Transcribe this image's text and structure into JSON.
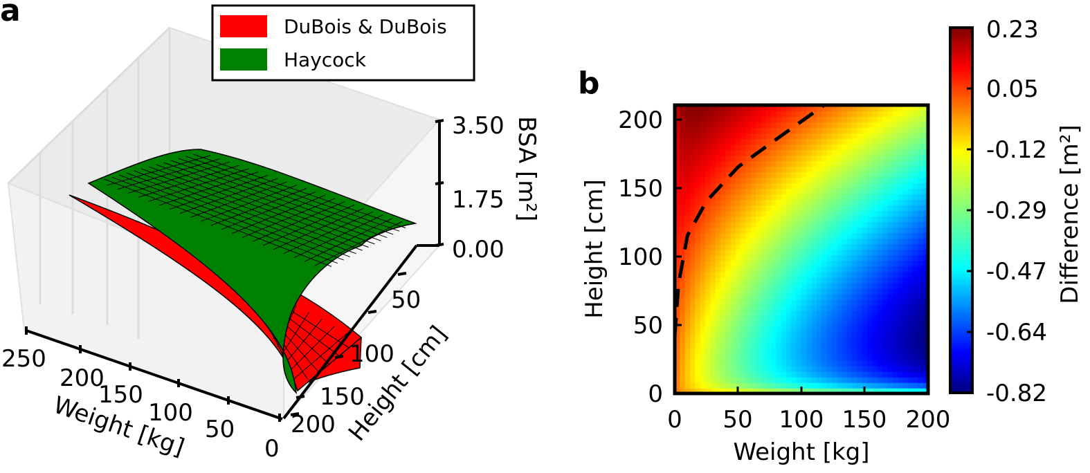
{
  "chart_data": [
    {
      "panel": "a",
      "type": "surface3d",
      "legend": [
        "DuBois & DuBois",
        "Haycock"
      ],
      "legend_colors": [
        "#ff0000",
        "#008000"
      ],
      "legend_position": "top",
      "xlabel": "Weight [kg]",
      "ylabel": "Height [cm]",
      "zlabel": "BSA [m²]",
      "x_ticks": [
        "250",
        "200",
        "150",
        "100",
        "50",
        "0"
      ],
      "y_ticks": [
        "50",
        "100",
        "150",
        "200"
      ],
      "z_ticks": [
        "3.50",
        "1.75",
        "0.00"
      ],
      "xlim": [
        0,
        250
      ],
      "ylim": [
        0,
        200
      ],
      "zlim": [
        0,
        3.5
      ],
      "surface_color_dubois": "#ff0000",
      "surface_color_haycock": "#008000"
    },
    {
      "panel": "b",
      "type": "heatmap",
      "xlabel": "Weight [kg]",
      "ylabel": "Height [cm]",
      "x_ticks": [
        "0",
        "50",
        "100",
        "150",
        "200"
      ],
      "y_ticks": [
        "0",
        "50",
        "100",
        "150",
        "200"
      ],
      "xlim": [
        0,
        200
      ],
      "ylim": [
        0,
        210
      ],
      "colorbar_label": "Difference [m²]",
      "colorbar_ticks": [
        "0.23",
        "0.05",
        "-0.12",
        "-0.29",
        "-0.47",
        "-0.64",
        "-0.82"
      ],
      "colorbar_range": [
        -0.82,
        0.23
      ],
      "colormap": "jet",
      "zero_contour": {
        "style": "dashed",
        "points": [
          [
            0,
            42
          ],
          [
            3,
            80
          ],
          [
            10,
            115
          ],
          [
            25,
            140
          ],
          [
            50,
            165
          ],
          [
            80,
            185
          ],
          [
            118,
            210
          ]
        ]
      }
    }
  ]
}
